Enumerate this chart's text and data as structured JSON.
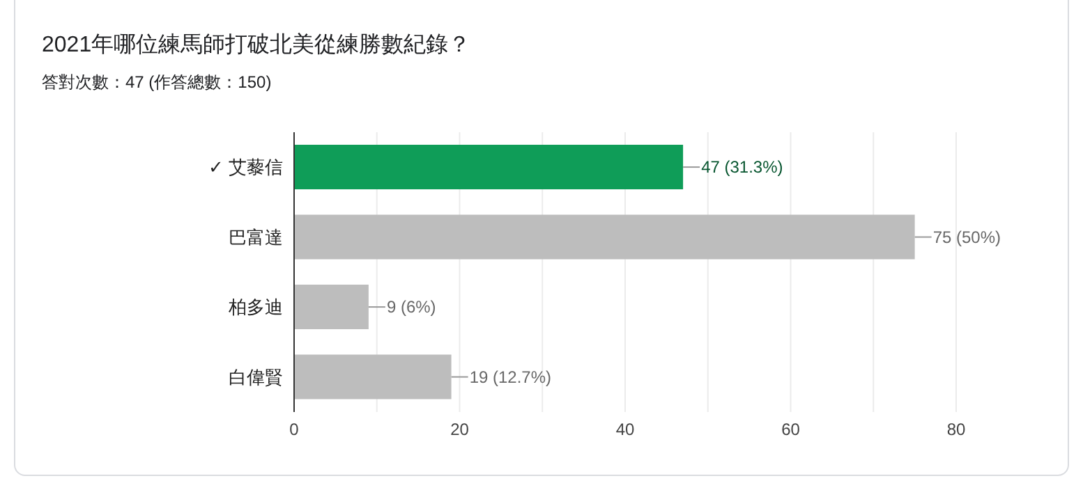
{
  "chart_data": {
    "type": "bar",
    "orientation": "horizontal",
    "title": "2021年哪位練馬師打破北美從練勝數紀錄？",
    "subtitle": "答對次數：47 (作答總數：150)",
    "categories": [
      "✓ 艾藜信",
      "巴富達",
      "柏多迪",
      "白偉賢"
    ],
    "values": [
      47,
      75,
      9,
      19
    ],
    "colors": [
      "#0f9d58",
      "#bdbdbd",
      "#bdbdbd",
      "#bdbdbd"
    ],
    "value_labels": [
      "47 (31.3%)",
      "75 (50%)",
      "9 (6%)",
      "19 (12.7%)"
    ],
    "xlim": [
      0,
      80
    ],
    "xticks": [
      0,
      {
        "value": 10,
        "label": null
      },
      20,
      {
        "value": 30,
        "label": null
      },
      40,
      {
        "value": 50,
        "label": null
      },
      60,
      {
        "value": 70,
        "label": null
      },
      80
    ],
    "grid": "x"
  }
}
